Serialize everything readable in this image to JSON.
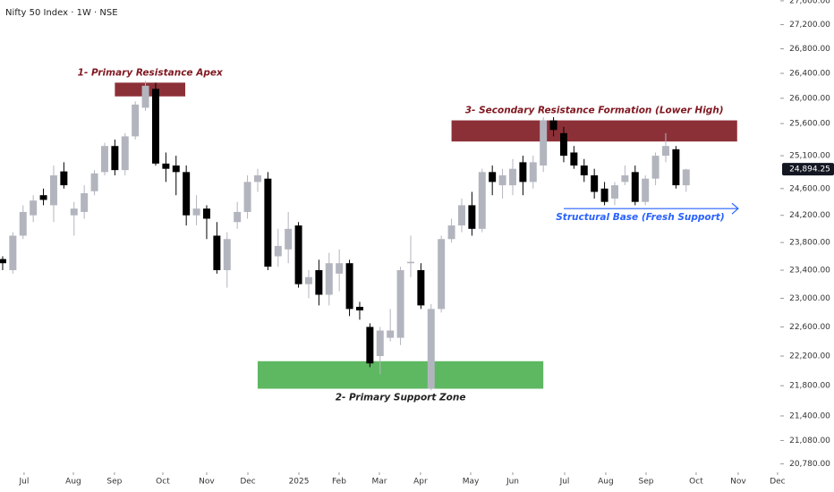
{
  "chart_data": {
    "type": "candlestick",
    "title": "Nifty 50 Index · 1W · NSE",
    "log_scale": true,
    "up_color": "#b2b5be",
    "down_color": "#000000",
    "x": [
      0,
      1,
      2,
      3,
      4,
      5,
      6,
      7,
      8,
      9,
      10,
      11,
      12,
      13,
      14,
      15,
      16,
      17,
      18,
      19,
      20,
      21,
      22,
      23,
      24,
      25,
      26,
      27,
      28,
      29,
      30,
      31,
      32,
      33,
      34,
      35,
      36,
      37,
      38,
      39,
      40,
      41,
      42,
      43,
      44,
      45,
      46,
      47,
      48,
      49,
      50,
      51,
      52,
      53,
      54,
      55,
      56,
      57,
      58,
      59,
      60,
      61,
      62,
      63,
      64,
      65,
      66,
      67
    ],
    "open": [
      23560,
      23400,
      23900,
      24200,
      24500,
      24350,
      24860,
      24200,
      24250,
      24560,
      24850,
      25250,
      24880,
      25400,
      25850,
      26150,
      24980,
      24950,
      24850,
      24200,
      24300,
      23900,
      23400,
      24100,
      24250,
      24700,
      24750,
      23600,
      23700,
      24050,
      23200,
      23400,
      23050,
      23350,
      23500,
      22880,
      22600,
      22200,
      22450,
      22450,
      23500,
      23400,
      21760,
      22850,
      23850,
      24050,
      24350,
      24000,
      24850,
      24650,
      24650,
      25000,
      24700,
      24950,
      25650,
      25450,
      25150,
      24950,
      24800,
      24600,
      24450,
      24700,
      24850,
      24400,
      24750,
      25100,
      25200,
      24650
    ],
    "high": [
      23600,
      23950,
      24350,
      24500,
      24600,
      24950,
      25000,
      24400,
      24650,
      24880,
      25300,
      25350,
      25450,
      25950,
      26280,
      26250,
      25150,
      25100,
      24950,
      24500,
      24350,
      24100,
      23950,
      24400,
      24800,
      24900,
      24850,
      24000,
      24250,
      24100,
      23400,
      23550,
      23650,
      23700,
      23550,
      22950,
      22650,
      22600,
      22850,
      23450,
      23900,
      23500,
      22920,
      23900,
      24150,
      24450,
      24550,
      24900,
      24950,
      24900,
      25050,
      25100,
      25100,
      25700,
      25700,
      25550,
      25250,
      25050,
      24900,
      24700,
      24700,
      24950,
      24950,
      24800,
      25150,
      25450,
      25250,
      24900
    ],
    "low": [
      23400,
      23350,
      23850,
      24100,
      24350,
      24100,
      24600,
      23900,
      24150,
      24500,
      24800,
      24800,
      24800,
      25350,
      25800,
      24950,
      24700,
      24500,
      24050,
      24050,
      23850,
      23350,
      23150,
      24000,
      24150,
      24550,
      23400,
      23450,
      23500,
      23150,
      23000,
      22900,
      22900,
      23100,
      22750,
      22700,
      22050,
      21950,
      22400,
      22350,
      23300,
      22850,
      21740,
      22800,
      23800,
      23950,
      23900,
      23950,
      24500,
      24450,
      24500,
      24500,
      24600,
      24850,
      25400,
      25000,
      24900,
      24700,
      24450,
      24350,
      24350,
      24650,
      24350,
      24350,
      24650,
      25000,
      24600,
      24550
    ],
    "close": [
      23500,
      23900,
      24250,
      24420,
      24430,
      24800,
      24650,
      24300,
      24530,
      24830,
      25250,
      24880,
      25400,
      25900,
      26200,
      24980,
      24900,
      24850,
      24200,
      24300,
      24150,
      23400,
      23850,
      24250,
      24700,
      24800,
      23450,
      23750,
      24000,
      23200,
      23300,
      23050,
      23500,
      23500,
      22850,
      22830,
      22100,
      22550,
      22550,
      23400,
      23520,
      22900,
      22850,
      23850,
      24050,
      24350,
      24000,
      24850,
      24700,
      24800,
      24900,
      24700,
      25000,
      25650,
      25500,
      25100,
      24950,
      24800,
      24550,
      24400,
      24650,
      24800,
      24400,
      24750,
      25100,
      25250,
      24650,
      24890
    ],
    "xlim": [
      -0.26,
      76.23
    ],
    "ylim": [
      20673,
      27614
    ],
    "xticks": [
      {
        "value": 2.1,
        "label": "Jul"
      },
      {
        "value": 6.93,
        "label": "Aug"
      },
      {
        "value": 10.96,
        "label": "Sep"
      },
      {
        "value": 15.7,
        "label": "Oct"
      },
      {
        "value": 20,
        "label": "Nov"
      },
      {
        "value": 24.04,
        "label": "Dec"
      },
      {
        "value": 29.04,
        "label": "2025"
      },
      {
        "value": 32.98,
        "label": "Feb"
      },
      {
        "value": 36.93,
        "label": "Mar"
      },
      {
        "value": 40.96,
        "label": "Apr"
      },
      {
        "value": 45.88,
        "label": "May"
      },
      {
        "value": 50,
        "label": "Jun"
      },
      {
        "value": 55.09,
        "label": "Jul"
      },
      {
        "value": 59.12,
        "label": "Aug"
      },
      {
        "value": 63.07,
        "label": "Sep"
      },
      {
        "value": 67.98,
        "label": "Oct"
      },
      {
        "value": 72.1,
        "label": "Nov"
      },
      {
        "value": 75.96,
        "label": "Dec"
      }
    ],
    "yticks": [
      {
        "value": 27600,
        "label": "27,600.00"
      },
      {
        "value": 27200,
        "label": "27,200.00"
      },
      {
        "value": 26800,
        "label": "26,800.00"
      },
      {
        "value": 26400,
        "label": "26,400.00"
      },
      {
        "value": 26000,
        "label": "26,000.00"
      },
      {
        "value": 25600,
        "label": "25,600.00"
      },
      {
        "value": 25100,
        "label": "25,100.00"
      },
      {
        "value": 24600,
        "label": "24,600.00"
      },
      {
        "value": 24200,
        "label": "24,200.00"
      },
      {
        "value": 23800,
        "label": "23,800.00"
      },
      {
        "value": 23400,
        "label": "23,400.00"
      },
      {
        "value": 23000,
        "label": "23,000.00"
      },
      {
        "value": 22600,
        "label": "22,600.00"
      },
      {
        "value": 22200,
        "label": "22,200.00"
      },
      {
        "value": 21800,
        "label": "21,800.00"
      },
      {
        "value": 21400,
        "label": "21,400.00"
      },
      {
        "value": 21080,
        "label": "21,080.00"
      },
      {
        "value": 20780,
        "label": "20,780.00"
      }
    ],
    "last_price": {
      "value": 24894.25,
      "label": "24,894.25"
    },
    "zones": [
      {
        "label": "1- Primary Resistance Apex",
        "color": "#801922",
        "text_color": "#801922",
        "x": [
          11,
          17.9
        ],
        "y": [
          26030,
          26250
        ]
      },
      {
        "label": "3- Secondary Resistance Formation (Lower High)",
        "color": "#801922",
        "text_color": "#801922",
        "x": [
          44,
          72
        ],
        "y": [
          25320,
          25650
        ]
      },
      {
        "label": "2- Primary Support Zone",
        "color": "#4caf50",
        "text_color": "#222222",
        "x": [
          25,
          53
        ],
        "y": [
          21760,
          22130
        ]
      }
    ],
    "arrow": {
      "label": "Structural Base (Fresh Support)",
      "color": "#2962ff",
      "x": [
        55,
        72.1
      ],
      "y": 24300
    }
  }
}
